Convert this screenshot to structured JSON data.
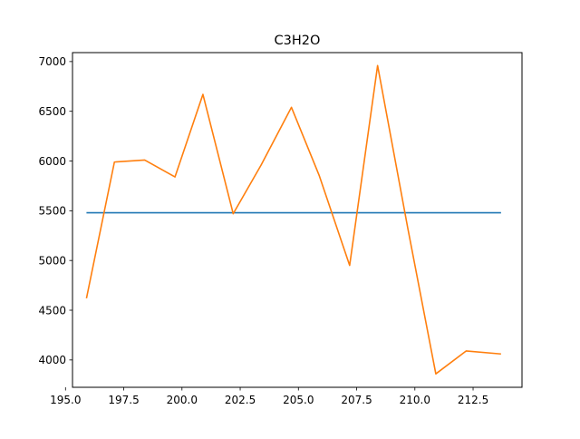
{
  "chart_data": {
    "type": "line",
    "title": "C3H2O",
    "xlabel": "",
    "ylabel": "",
    "xlim": [
      195.3,
      214.6
    ],
    "ylim": [
      3725,
      7090
    ],
    "x_ticks": [
      195.0,
      197.5,
      200.0,
      202.5,
      205.0,
      207.5,
      210.0,
      212.5
    ],
    "x_tick_labels": [
      "195.0",
      "197.5",
      "200.0",
      "202.5",
      "205.0",
      "207.5",
      "210.0",
      "212.5"
    ],
    "y_ticks": [
      4000,
      4500,
      5000,
      5500,
      6000,
      6500,
      7000
    ],
    "y_tick_labels": [
      "4000",
      "4500",
      "5000",
      "5500",
      "6000",
      "6500",
      "7000"
    ],
    "grid": false,
    "legend": "none",
    "series": [
      {
        "color": "#1f77b4",
        "x": [
          195.9,
          213.7
        ],
        "y": [
          5480,
          5480
        ]
      },
      {
        "color": "#ff7f0e",
        "x": [
          195.9,
          197.1,
          198.4,
          199.7,
          200.9,
          202.2,
          203.4,
          204.7,
          205.9,
          207.2,
          208.4,
          209.7,
          210.9,
          212.2,
          213.7
        ],
        "y": [
          4620,
          5990,
          6010,
          5840,
          6670,
          5470,
          5960,
          6540,
          5850,
          4950,
          6960,
          5320,
          3860,
          4090,
          4060
        ]
      }
    ]
  }
}
